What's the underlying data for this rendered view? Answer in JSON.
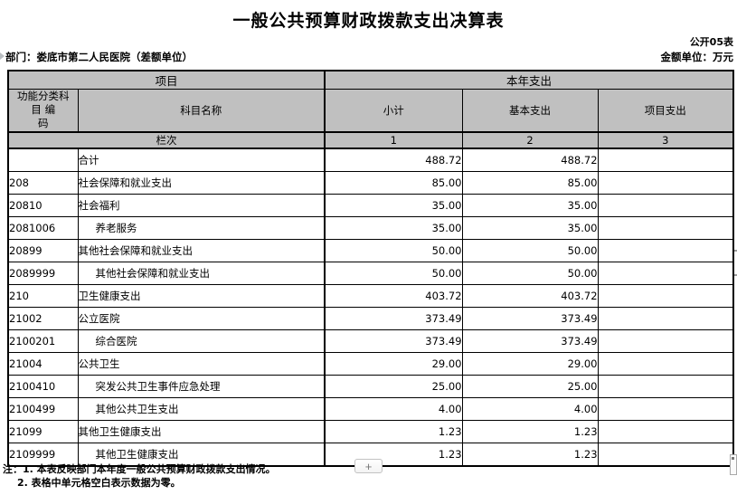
{
  "page": {
    "title": "一般公共预算财政拨款支出决算表",
    "table_code": "公开05表",
    "department": "部门：娄底市第二人民医院（差额单位）",
    "unit_label": "金额单位：万元"
  },
  "table": {
    "header": {
      "project_group": "项目",
      "year_expenditure_group": "本年支出",
      "code_column_full": "功能分类科目编码",
      "code_line1": "功能分类科",
      "code_line2": "目  编",
      "code_line3": "码",
      "subject_name": "科目名称",
      "subtotal": "小计",
      "basic_expenditure": "基本支出",
      "project_expenditure": "项目支出",
      "lane_label": "栏次",
      "lane_1": "1",
      "lane_2": "2",
      "lane_3": "3"
    },
    "rows": [
      {
        "code": "",
        "name": "合计",
        "indent": 0,
        "subtotal": "488.72",
        "basic": "488.72",
        "project": ""
      },
      {
        "code": "208",
        "name": "社会保障和就业支出",
        "indent": 0,
        "subtotal": "85.00",
        "basic": "85.00",
        "project": ""
      },
      {
        "code": "20810",
        "name": "社会福利",
        "indent": 0,
        "subtotal": "35.00",
        "basic": "35.00",
        "project": ""
      },
      {
        "code": "2081006",
        "name": "养老服务",
        "indent": 1,
        "subtotal": "35.00",
        "basic": "35.00",
        "project": ""
      },
      {
        "code": "20899",
        "name": "其他社会保障和就业支出",
        "indent": 0,
        "subtotal": "50.00",
        "basic": "50.00",
        "project": ""
      },
      {
        "code": "2089999",
        "name": "其他社会保障和就业支出",
        "indent": 1,
        "subtotal": "50.00",
        "basic": "50.00",
        "project": ""
      },
      {
        "code": "210",
        "name": "卫生健康支出",
        "indent": 0,
        "subtotal": "403.72",
        "basic": "403.72",
        "project": ""
      },
      {
        "code": "21002",
        "name": "公立医院",
        "indent": 0,
        "subtotal": "373.49",
        "basic": "373.49",
        "project": ""
      },
      {
        "code": "2100201",
        "name": "综合医院",
        "indent": 1,
        "subtotal": "373.49",
        "basic": "373.49",
        "project": ""
      },
      {
        "code": "21004",
        "name": "公共卫生",
        "indent": 0,
        "subtotal": "29.00",
        "basic": "29.00",
        "project": ""
      },
      {
        "code": "2100410",
        "name": "突发公共卫生事件应急处理",
        "indent": 1,
        "subtotal": "25.00",
        "basic": "25.00",
        "project": ""
      },
      {
        "code": "2100499",
        "name": "其他公共卫生支出",
        "indent": 1,
        "subtotal": "4.00",
        "basic": "4.00",
        "project": ""
      },
      {
        "code": "21099",
        "name": "其他卫生健康支出",
        "indent": 0,
        "subtotal": "1.23",
        "basic": "1.23",
        "project": ""
      },
      {
        "code": "2109999",
        "name": "其他卫生健康支出",
        "indent": 1,
        "subtotal": "1.23",
        "basic": "1.23",
        "project": ""
      }
    ]
  },
  "notes": {
    "line1": "注：1. 本表反映部门本年度一般公共预算财政拨款支出情况。",
    "line2": "2. 表格中单元格空白表示数据为零。"
  },
  "zoom_button": {
    "label": "+"
  },
  "colors": {
    "header_bg": "#c0c0c0",
    "border": "#000000"
  }
}
